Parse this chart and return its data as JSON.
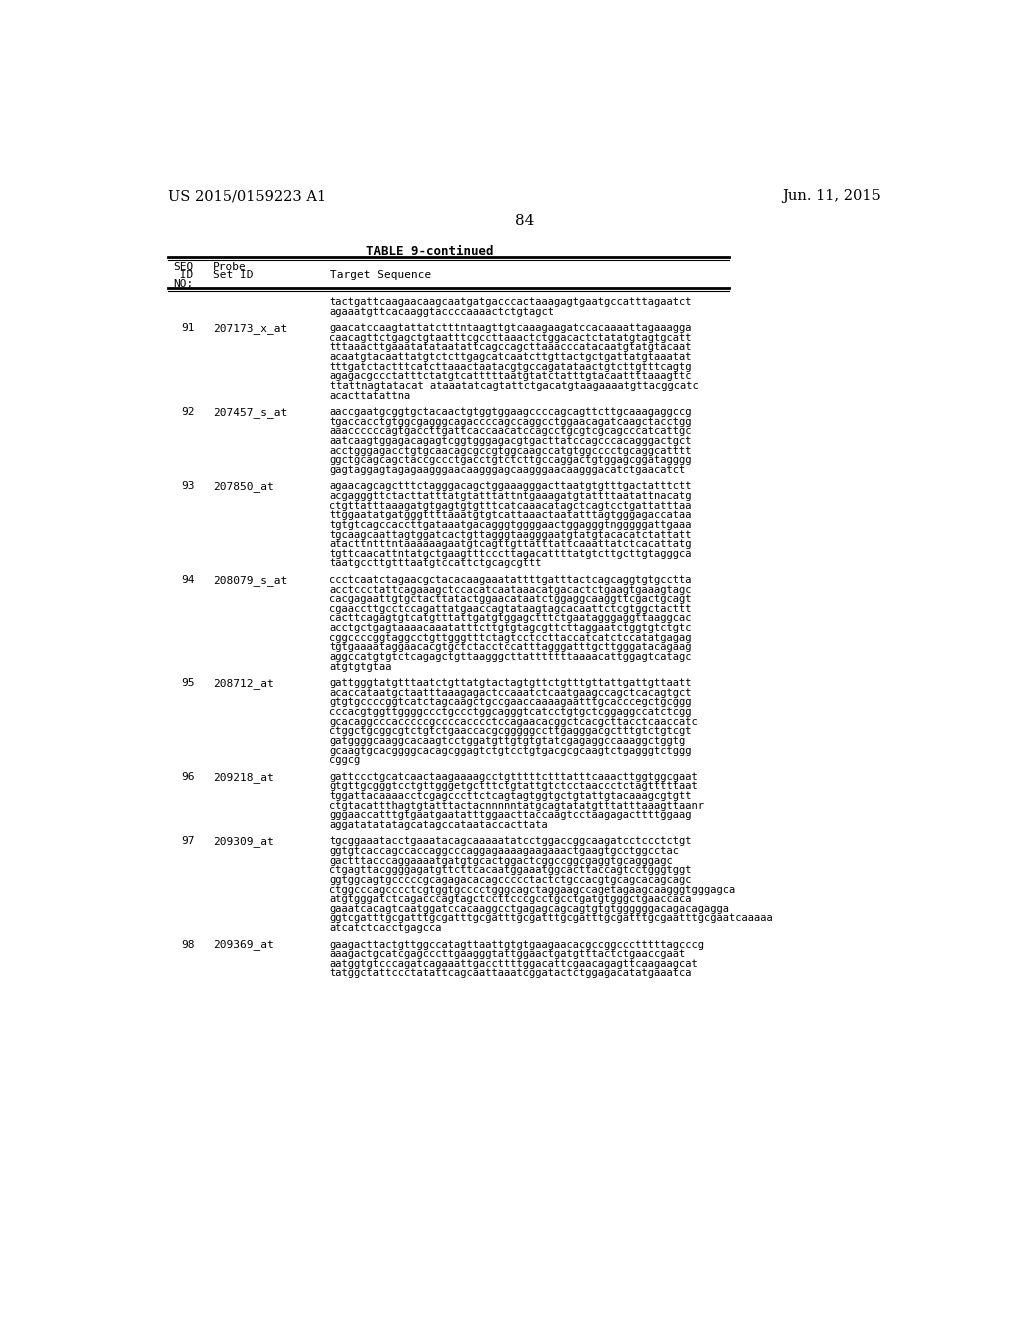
{
  "header_left": "US 2015/0159223 A1",
  "header_right": "Jun. 11, 2015",
  "page_number": "84",
  "table_title": "TABLE 9-continued",
  "background_color": "#ffffff",
  "text_color": "#000000",
  "entries": [
    {
      "seq_id": "",
      "probe_id": "",
      "sequence": "tactgattcaagaacaagcaatgatgacccactaaagagtgaatgccatttagaatct\nagaaatgttcacaaggtaccccaaaactctgtagct"
    },
    {
      "seq_id": "91",
      "probe_id": "207173_x_at",
      "sequence": "gaacatccaagtattatctttntaagttgtcaaagaagatccacaaaattagaaagga\ncaacagttctgagctgtaatttcgccttaaactctggacactctatatgtagtgcatt\ntttaaacttgaaatatataatattcagccagcttaaacccatacaatgtatgtacaat\nacaatgtacaattatgtctcttgagcatcaatcttgttactgctgattatgtaaatat\ntttgatctactttcatcttaaactaatacgtgccagatataactgtcttgtttcagtg\nagagacgccctatttctatgtcatttttaatgtatctatttgtacaattttaaagttc\nttattnagtatacat ataaatatcagtattctgacatgtaagaaaatgttacggcatc\nacacttatattna"
    },
    {
      "seq_id": "92",
      "probe_id": "207457_s_at",
      "sequence": "aaccgaatgcggtgctacaactgtggtggaagccccagcagttcttgcaaagaggccg\ntgaccacctgtggcgagggcagaccccagccaggcctggaacagatcaagctacctgg\naaaccccccagtgaccttgattcaccaacatccagcctgcgtcgcagcccatcattgc\naatcaagtggagacagagtcggtgggagacgtgacttatccagcccacagggactgct\nacctgggagacctgtgcaacagcgccgtggcaagccatgtggcccctgcaggcatttt\nggctgcagcagctaccgccctgacctgtctcttgccaggactgtggagcggatagggg\ngagtaggagtagagaagggaacaagggagcaagggaacaagggacatctgaacatct"
    },
    {
      "seq_id": "93",
      "probe_id": "207850_at",
      "sequence": "agaacagcagctttctagggacagctggaaagggacttaatgtgtttgactatttctt\nacgagggttctacttatttatgtatttattntgaaagatgtattttaatattnacatg\nctgttatttaaagatgtgagtgtgtttcatcaaacatagctcagtcctgattatttaa\nttggaatatgatgggttttaaatgtgtcattaaactaatatttagtgggagaccataa\ntgtgtcagccaccttgataaatgacagggtggggaactggagggtngggggattgaaa\ntgcaagcaattagtggatcactgttagggtaagggaatgtatgtacacatctattatt\natacttntttntaaaaaagaatgtcagttgttatttattcaaattatctcacattatg\ntgttcaacattntatgctgaagtttcccttagacattttatgtcttgcttgtagggca\ntaatgccttgtttaatgtccattctgcagcgttt"
    },
    {
      "seq_id": "94",
      "probe_id": "208079_s_at",
      "sequence": "ccctcaatctagaacgctacacaagaaatattttgatttactcagcaggtgtgcctta\nacctccctattcagaaagctccacatcaataaacatgacactctgaagtgaaagtagc\ncacgagaattgtgctacttatactggaacataatctggaggcaaggttcgactgcagt\ncgaaccttgcctccagattatgaaccagtataagtagcacaattctcgtggctacttt\ncacttcagagtgtcatgtttattgatgtggagctttctgaatagggaggttaaggcac\nacctgctgagtaaaacaaatatttcttgtgtagcgttcttaggaatctggtgtctgtc\ncggccccggtaggcctgttgggtttctagtcctccttaccatcatctccatatgagag\ntgtgaaaataggaacacgtgctctacctccatttagggatttgcttgggatacagaag\naggccatgtgtctcagagctgttaagggcttatttttttaaaacattggagtcatagc\natgtgtgtaa"
    },
    {
      "seq_id": "95",
      "probe_id": "208712_at",
      "sequence": "gattgggtatgtttaatctgttatgtactagtgttctgtttgttattgattgttaatt\nacaccataatgctaatttaaagagactccaaatctcaatgaagccagctcacagtgct\ngtgtgccccggtcatctagcaagctgccgaaccaaaagaatttgcacccegctgcggg\ncccacgtggttggggccctgccctggcagggtcatcctgtgctcggaggccatctcgg\ngcacaggcccacccccgccccacccctccagaacacggctcacgcttacctcaaccatc\nctggctgcggcgtctgtctgaaccacgcgggggccttgagggacgctttgtctgtcgt\ngatggggcaaggcacaagtcctggatgttgtgtgtatcgagaggccaaaggctggtg\ngcaagtgcacggggcacagcggagtctgtcctgtgacgcgcaagtctgagggtctggg\ncggcg"
    },
    {
      "seq_id": "96",
      "probe_id": "209218_at",
      "sequence": "gattccctgcatcaactaagaaaagcctgtttttctttatttcaaacttggtggcgaat\ngtgttgcgggtcctgttgggetgctttctgtattgtctcctaaccctctagtttttaat\ntggattacaaaacctcgagcccttctcagtagtggtgctgtattgtacaaagcgtgtt\nctgtacattthagtgtatttactacnnnnntatgcagtatatgtttatttaaagttaanr\ngggaaccatttgtgaatgaatatttggaacttaccaagtcctaagagacttttggaag\naggatatatatagcatagccataataccacttata"
    },
    {
      "seq_id": "97",
      "probe_id": "209309_at",
      "sequence": "tgcggaaatacctgaaatacagcaaaaatatcctggaccggcaagatcctccctctgt\nggtgtcaccagccaccaggcccaggagaaaagaagaaactgaagtgcctggcctac\ngactttacccaggaaaatgatgtgcactggactcggccggcgaggtgcagggagc\nctgagttacggggagatgttcttcacaatggaaatggcacttaccagtcctgggtggt\nggtggcagtgcccccgcagagacacagccccctactctgccacgtgcagcacagcagc\nctggcccagcccctcgtggtgcccctgggcagctaggaagccagetagaagcaagggtgggagca\natgtgggatctcagacccagtagctccttcccgcctgcctgatgtgggctgaaccaca\ngaaatcacagtcaatggatccacaaggcctgagagcagcagtgtgtggggggacagacagagga\nggtcgatttgcgatttgcgatttgcgatttgcgatttgcgatttgcgatttgcgaatttgcgaatcaaaaa\natcatctcacctgagcca"
    },
    {
      "seq_id": "98",
      "probe_id": "209369_at",
      "sequence": "gaagacttactgttggccatagttaattgtgtgaagaacacgccggccctttttagcccg\naaagactgcatcgagcccttgaagggtattggaactgatgtttactctgaaccgaat\naatggtgtcccagatcagaaattgaccttttggacattcgaacagagttcaagaagcat\ntatggctattccctatattcagcaattaaatcggatactctggagacatatgaaatca"
    }
  ]
}
